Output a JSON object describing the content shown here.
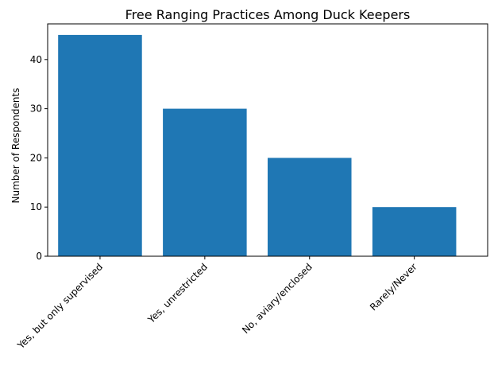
{
  "chart_data": {
    "type": "bar",
    "title": "Free Ranging Practices Among Duck Keepers",
    "xlabel": "",
    "ylabel": "Number of Respondents",
    "categories": [
      "Yes, but only supervised",
      "Yes, unrestricted",
      "No, aviary/enclosed",
      "Rarely/Never"
    ],
    "values": [
      45,
      30,
      20,
      10
    ],
    "ylim": [
      0,
      47.25
    ],
    "yticks": [
      0,
      10,
      20,
      30,
      40
    ],
    "bar_color": "#1f77b4",
    "grid": false,
    "legend": "none"
  }
}
